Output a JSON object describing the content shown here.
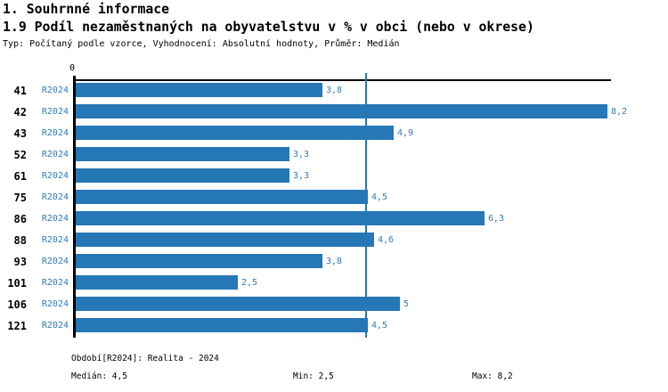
{
  "header": {
    "section_title": "1. Souhrnné informace",
    "chart_title": "1.9 Podíl nezaměstnaných na obyvatelstvu v % v obci (nebo v okrese)",
    "subtitle": "Typ: Počítaný podle vzorce, Vyhodnocení: Absolutní hodnoty, Průměr: Medián"
  },
  "chart_data": {
    "type": "bar",
    "orientation": "horizontal",
    "title": "1.9 Podíl nezaměstnaných na obyvatelstvu v % v obci (nebo v okrese)",
    "categories": [
      "41",
      "42",
      "43",
      "52",
      "61",
      "75",
      "86",
      "88",
      "93",
      "101",
      "106",
      "121"
    ],
    "series": [
      {
        "name": "R2024",
        "values": [
          3.8,
          8.2,
          4.9,
          3.3,
          3.3,
          4.5,
          6.3,
          4.6,
          3.8,
          2.5,
          5,
          4.5
        ],
        "value_labels": [
          "3,8",
          "8,2",
          "4,9",
          "3,3",
          "3,3",
          "4,5",
          "6,3",
          "4,6",
          "3,8",
          "2,5",
          "5",
          "4,5"
        ]
      }
    ],
    "xlim": [
      0,
      8.2
    ],
    "axis_zero_label": "0",
    "median_reference": 4.5,
    "grid": false,
    "legend_position": "none",
    "bar_color": "#2577b5",
    "median_line_color": "#2577b5",
    "label_color": "#2e7cba"
  },
  "footer": {
    "period": "Období[R2024]: Realita - 2024",
    "median": "Medián: 4,5",
    "min": "Min: 2,5",
    "max": "Max: 8,2"
  },
  "colors": {
    "accent_blue": "#2577b5",
    "text_blue": "#2e7cba",
    "axis_black": "#000000",
    "background": "#ffffff"
  }
}
